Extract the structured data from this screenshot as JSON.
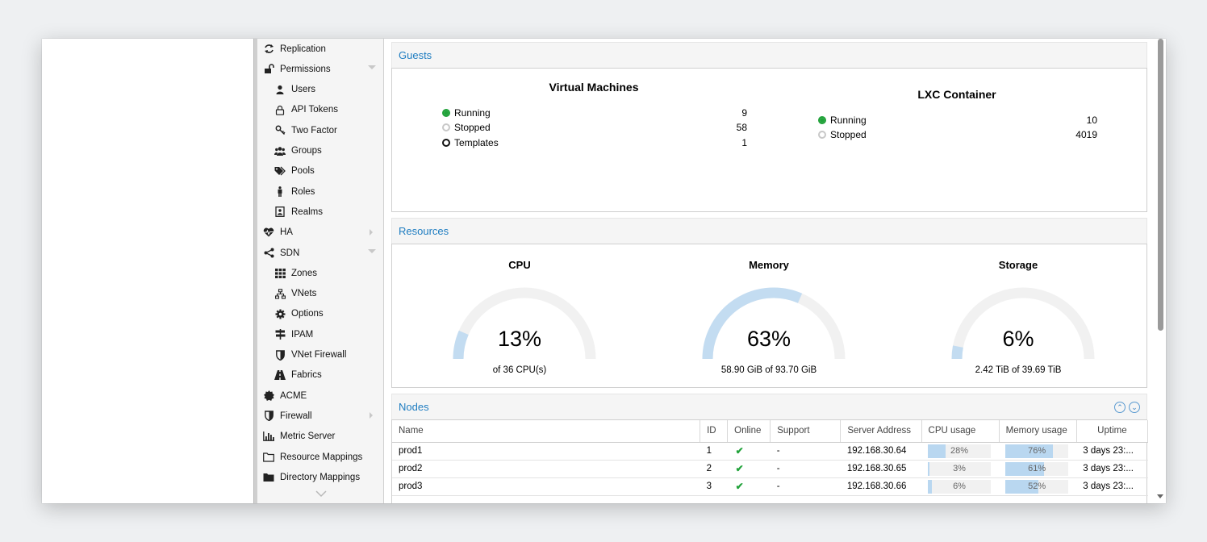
{
  "nav": {
    "items": [
      {
        "label": "Replication",
        "icon": "replication-icon",
        "level": 1
      },
      {
        "label": "Permissions",
        "icon": "unlock-icon",
        "level": 1,
        "expander": "down"
      },
      {
        "label": "Users",
        "icon": "user-icon",
        "level": 2
      },
      {
        "label": "API Tokens",
        "icon": "lock-icon",
        "level": 2
      },
      {
        "label": "Two Factor",
        "icon": "key-icon",
        "level": 2
      },
      {
        "label": "Groups",
        "icon": "users-icon",
        "level": 2
      },
      {
        "label": "Pools",
        "icon": "tags-icon",
        "level": 2
      },
      {
        "label": "Roles",
        "icon": "male-icon",
        "level": 2
      },
      {
        "label": "Realms",
        "icon": "address-book-icon",
        "level": 2
      },
      {
        "label": "HA",
        "icon": "heartbeat-icon",
        "level": 1,
        "expander": "right"
      },
      {
        "label": "SDN",
        "icon": "share-alt-icon",
        "level": 1,
        "expander": "down"
      },
      {
        "label": "Zones",
        "icon": "grid-icon",
        "level": 2
      },
      {
        "label": "VNets",
        "icon": "network-icon",
        "level": 2
      },
      {
        "label": "Options",
        "icon": "gear-icon",
        "level": 2
      },
      {
        "label": "IPAM",
        "icon": "signpost-icon",
        "level": 2
      },
      {
        "label": "VNet Firewall",
        "icon": "shield-icon",
        "level": 2
      },
      {
        "label": "Fabrics",
        "icon": "road-icon",
        "level": 2
      },
      {
        "label": "ACME",
        "icon": "certificate-icon",
        "level": 1
      },
      {
        "label": "Firewall",
        "icon": "shield-icon",
        "level": 1,
        "expander": "right"
      },
      {
        "label": "Metric Server",
        "icon": "bar-chart-icon",
        "level": 1
      },
      {
        "label": "Resource Mappings",
        "icon": "folder-outline-icon",
        "level": 1
      },
      {
        "label": "Directory Mappings",
        "icon": "folder-icon",
        "level": 1
      }
    ]
  },
  "guests": {
    "header": "Guests",
    "vm": {
      "title": "Virtual Machines",
      "rows": [
        {
          "label": "Running",
          "value": "9",
          "status": "running"
        },
        {
          "label": "Stopped",
          "value": "58",
          "status": "stopped"
        },
        {
          "label": "Templates",
          "value": "1",
          "status": "template"
        }
      ]
    },
    "lxc": {
      "title": "LXC Container",
      "rows": [
        {
          "label": "Running",
          "value": "10",
          "status": "running"
        },
        {
          "label": "Stopped",
          "value": "4019",
          "status": "stopped"
        }
      ]
    }
  },
  "resources": {
    "header": "Resources",
    "gauges": [
      {
        "title": "CPU",
        "percent_text": "13%",
        "percent": 13,
        "subtitle": "of 36 CPU(s)"
      },
      {
        "title": "Memory",
        "percent_text": "63%",
        "percent": 63,
        "subtitle": "58.90 GiB of 93.70 GiB"
      },
      {
        "title": "Storage",
        "percent_text": "6%",
        "percent": 6,
        "subtitle": "2.42 TiB of 39.69 TiB"
      }
    ]
  },
  "nodes": {
    "header": "Nodes",
    "columns": [
      "Name",
      "ID",
      "Online",
      "Support",
      "Server Address",
      "CPU usage",
      "Memory usage",
      "Uptime"
    ],
    "rows": [
      {
        "name": "prod1",
        "id": "1",
        "support": "-",
        "address": "192.168.30.64",
        "cpu": "28%",
        "cpu_value": 28,
        "mem": "76%",
        "mem_value": 76,
        "uptime": "3 days 23:..."
      },
      {
        "name": "prod2",
        "id": "2",
        "support": "-",
        "address": "192.168.30.65",
        "cpu": "3%",
        "cpu_value": 3,
        "mem": "61%",
        "mem_value": 61,
        "uptime": "3 days 23:..."
      },
      {
        "name": "prod3",
        "id": "3",
        "support": "-",
        "address": "192.168.30.66",
        "cpu": "6%",
        "cpu_value": 6,
        "mem": "52%",
        "mem_value": 52,
        "uptime": "3 days 23:..."
      }
    ]
  },
  "colors": {
    "accent": "#1f7dc1",
    "running": "#21a23a",
    "stopped": "#c8c8c8",
    "gauge_fill": "#c3dcf1",
    "gauge_track": "#f1f1f1"
  }
}
